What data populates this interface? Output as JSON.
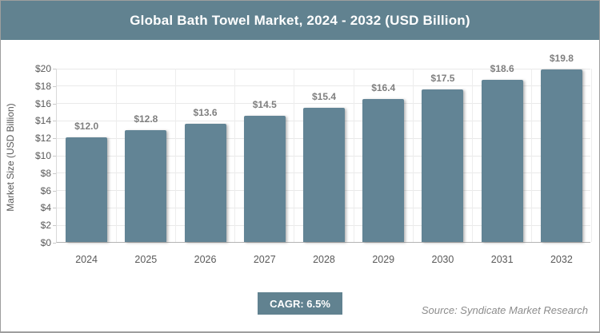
{
  "header": {
    "title": "Global Bath Towel Market, 2024 - 2032 (USD Billion)"
  },
  "chart_data": {
    "type": "bar",
    "title": "Global Bath Towel Market, 2024 - 2032 (USD Billion)",
    "categories": [
      "2024",
      "2025",
      "2026",
      "2027",
      "2028",
      "2029",
      "2030",
      "2031",
      "2032"
    ],
    "values": [
      12.0,
      12.8,
      13.6,
      14.5,
      15.4,
      16.4,
      17.5,
      18.6,
      19.8
    ],
    "value_labels": [
      "$12.0",
      "$12.8",
      "$13.6",
      "$14.5",
      "$15.4",
      "$16.4",
      "$17.5",
      "$18.6",
      "$19.8"
    ],
    "xlabel": "",
    "ylabel": "Market Size (USD Billion)",
    "ylim": [
      0,
      20
    ],
    "ytick_step": 2,
    "ytick_labels": [
      "$0",
      "$2",
      "$4",
      "$6",
      "$8",
      "$10",
      "$12",
      "$14",
      "$16",
      "$18",
      "$20"
    ],
    "grid": true,
    "legend_position": "none",
    "bar_color": "#628495"
  },
  "footer": {
    "cagr_label": "CAGR: 6.5%",
    "source": "Source: Syndicate Market Research"
  },
  "colors": {
    "accent_teal": "#618290",
    "bar": "#628495",
    "value_label_text": "#7f7f7f",
    "axis_text": "#595959",
    "gridline": "#e9e9e9",
    "source_text": "#8c8c8c",
    "border": "#9e9e9e"
  }
}
